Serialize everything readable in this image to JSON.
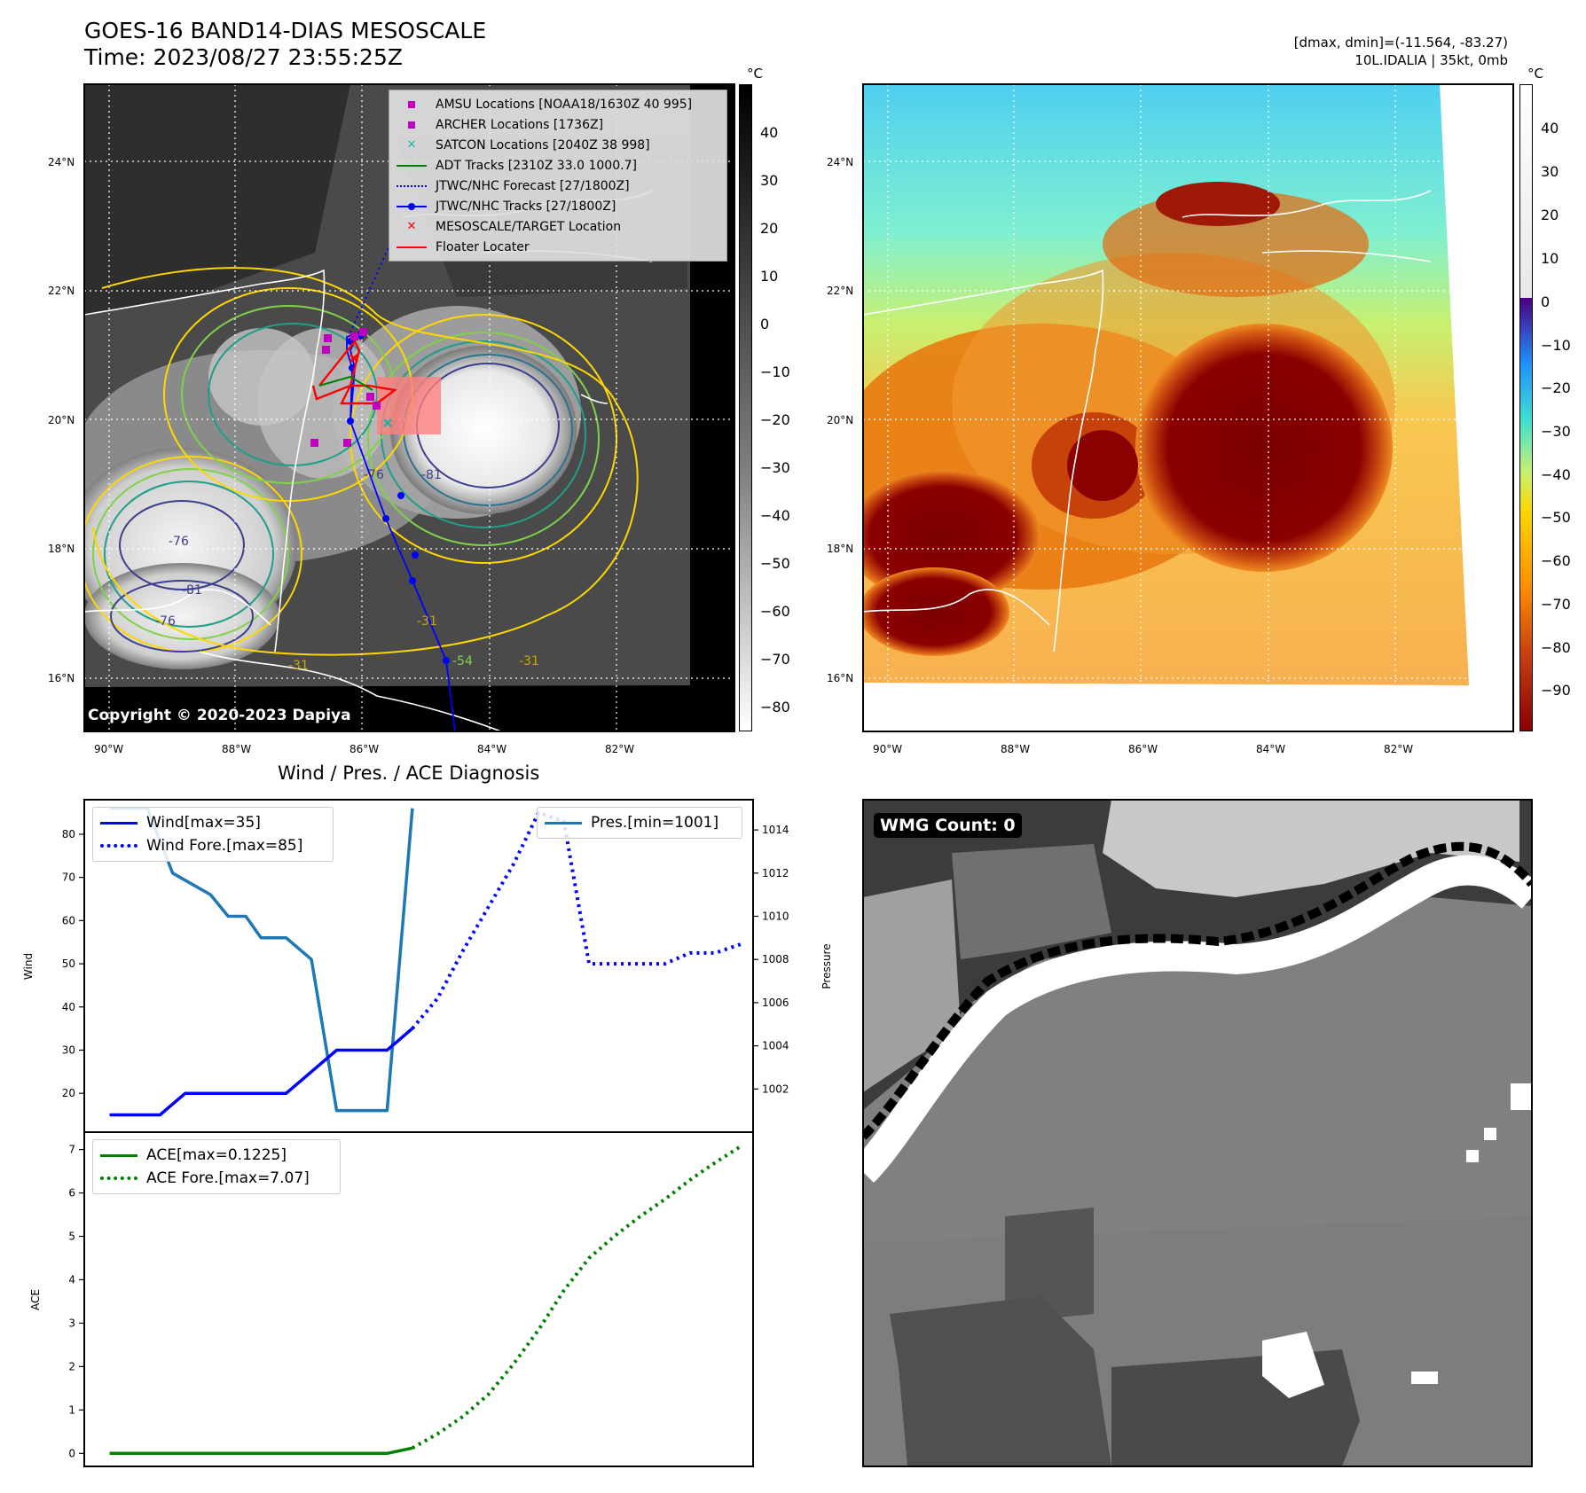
{
  "header": {
    "title_line1": "GOES-16 BAND14-DIAS MESOSCALE",
    "title_line2": "Time: 2023/08/27 23:55:25Z",
    "right_line1": "[dmax, dmin]=(-11.564, -83.27)",
    "right_line2": "10L.IDALIA | 35kt, 0mb"
  },
  "map_axes": {
    "lat_labels": [
      "24°N",
      "22°N",
      "20°N",
      "18°N",
      "16°N"
    ],
    "lon_labels": [
      "90°W",
      "88°W",
      "86°W",
      "84°W",
      "82°W"
    ]
  },
  "left_map": {
    "copyright": "Copyright © 2020-2023 Dapiya",
    "contour_labels": [
      "-76",
      "-81",
      "-76",
      "-81",
      "-76",
      "-54",
      "-31",
      "-31",
      "-31"
    ],
    "legend": [
      {
        "label": "AMSU Locations [NOAA18/1630Z 40 995]",
        "color": "#c000c0",
        "marker": "square"
      },
      {
        "label": "ARCHER Locations [1736Z]",
        "color": "#c000c0",
        "marker": "square"
      },
      {
        "label": "SATCON Locations [2040Z 38 998]",
        "color": "#20b2aa",
        "marker": "x"
      },
      {
        "label": "ADT Tracks [2310Z 33.0 1000.7]",
        "color": "#008000",
        "marker": "line"
      },
      {
        "label": "JTWC/NHC Forecast [27/1800Z]",
        "color": "#0000ff",
        "marker": "dotted"
      },
      {
        "label": "JTWC/NHC Tracks [27/1800Z]",
        "color": "#0000ff",
        "marker": "line-dot"
      },
      {
        "label": "MESOSCALE/TARGET Location",
        "color": "#ff0000",
        "marker": "x"
      },
      {
        "label": "Floater Locater",
        "color": "#ff0000",
        "marker": "line"
      }
    ]
  },
  "colorbar_left": {
    "unit": "°C",
    "ticks": [
      "40",
      "30",
      "20",
      "10",
      "0",
      "−10",
      "−20",
      "−30",
      "−40",
      "−50",
      "−60",
      "−70",
      "−80"
    ]
  },
  "colorbar_right": {
    "unit": "°C",
    "ticks": [
      "40",
      "30",
      "20",
      "10",
      "0",
      "−10",
      "−20",
      "−30",
      "−40",
      "−50",
      "−60",
      "−70",
      "−80",
      "−90"
    ]
  },
  "bottom_right": {
    "badge": "WMG Count: 0"
  },
  "chart_data": [
    {
      "type": "line",
      "title": "Wind / Pres. / ACE Diagnosis",
      "ylabel": "Wind",
      "ylabel_right": "Pressure",
      "ylim": [
        11,
        88
      ],
      "ylim_right": [
        1000,
        1015.4
      ],
      "yticks": [
        "20",
        "30",
        "40",
        "50",
        "60",
        "70",
        "80"
      ],
      "yticks_right": [
        "1002",
        "1004",
        "1006",
        "1008",
        "1010",
        "1012",
        "1014"
      ],
      "xlim": [
        0,
        26.5
      ],
      "series": [
        {
          "name": "Wind[max=35]",
          "axis": "left",
          "style": "solid",
          "color": "#0000ff",
          "x": [
            1,
            3,
            4,
            7,
            8,
            9,
            10,
            11,
            12,
            13
          ],
          "y": [
            15,
            15,
            20,
            20,
            20,
            25,
            30,
            30,
            30,
            35
          ]
        },
        {
          "name": "Wind Fore.[max=85]",
          "axis": "left",
          "style": "dotted",
          "color": "#0000ff",
          "x": [
            13,
            14,
            15,
            16,
            17,
            18,
            19,
            20,
            21,
            22,
            23,
            24,
            25,
            26
          ],
          "y": [
            35,
            42,
            53,
            63,
            73,
            85,
            83,
            50,
            50,
            50,
            50,
            52.5,
            52.5,
            54.5
          ]
        },
        {
          "name": "Pres.[min=1001]",
          "axis": "right",
          "style": "solid",
          "color": "#1f77b4",
          "x": [
            1,
            2.5,
            3.5,
            5,
            5.7,
            6.4,
            7,
            8,
            9,
            10,
            11,
            12,
            13
          ],
          "y": [
            1015,
            1015,
            1012,
            1011,
            1010,
            1010,
            1009,
            1009,
            1008,
            1001,
            1001,
            1001,
            1015
          ]
        }
      ]
    },
    {
      "type": "line",
      "ylabel": "ACE",
      "ylim": [
        -0.3,
        7.4
      ],
      "yticks": [
        "0",
        "1",
        "2",
        "3",
        "4",
        "5",
        "6",
        "7"
      ],
      "xlim": [
        0,
        26.5
      ],
      "series": [
        {
          "name": "ACE[max=0.1225]",
          "style": "solid",
          "color": "#008000",
          "x": [
            1,
            3,
            5,
            7,
            9,
            11,
            12,
            13
          ],
          "y": [
            0,
            0,
            0,
            0,
            0,
            0,
            0,
            0.1225
          ]
        },
        {
          "name": "ACE Fore.[max=7.07]",
          "style": "dotted",
          "color": "#008000",
          "x": [
            13,
            14,
            15,
            16,
            17,
            18,
            19,
            20,
            21,
            22,
            23,
            24,
            25,
            26
          ],
          "y": [
            0.1225,
            0.45,
            0.85,
            1.35,
            2.05,
            2.85,
            3.75,
            4.5,
            5.0,
            5.45,
            5.85,
            6.3,
            6.7,
            7.07
          ]
        }
      ]
    }
  ]
}
